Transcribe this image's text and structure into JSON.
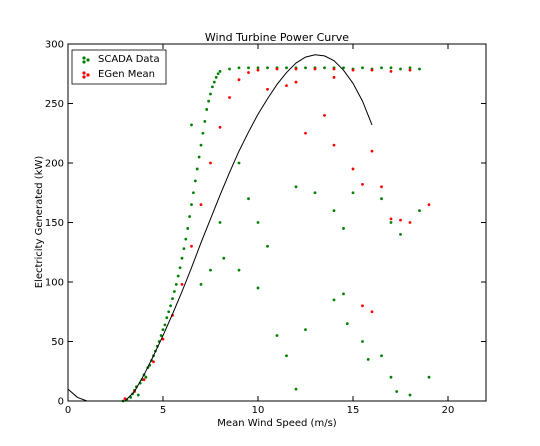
{
  "chart_data": {
    "type": "scatter",
    "title": "Wind Turbine Power Curve",
    "xlabel": "Mean Wind Speed (m/s)",
    "ylabel": "Electricity Generated (kW)",
    "xlim": [
      0,
      22
    ],
    "ylim": [
      0,
      300
    ],
    "x_ticks": [
      0,
      5,
      10,
      15,
      20
    ],
    "y_ticks": [
      0,
      50,
      100,
      150,
      200,
      250,
      300
    ],
    "grid": false,
    "legend_position": "top-left",
    "series": [
      {
        "name": "SCADA Data",
        "marker": "dot",
        "color": "#008000",
        "shape": "dense cloud of points following a sigmoid power curve from cut-in ~3 m/s, rising steeply between 4 and 8 m/s, saturating at ~280 kW from ~8.5 m/s to ~18.5 m/s, with sparse outliers below the curve",
        "points": [
          [
            2.9,
            0
          ],
          [
            3.1,
            1
          ],
          [
            3.3,
            3
          ],
          [
            3.4,
            6
          ],
          [
            3.5,
            9
          ],
          [
            3.6,
            12
          ],
          [
            3.7,
            5
          ],
          [
            3.8,
            15
          ],
          [
            3.9,
            18
          ],
          [
            4.0,
            22
          ],
          [
            4.1,
            20
          ],
          [
            4.2,
            28
          ],
          [
            4.3,
            30
          ],
          [
            4.4,
            34
          ],
          [
            4.5,
            38
          ],
          [
            4.6,
            42
          ],
          [
            4.7,
            46
          ],
          [
            4.8,
            50
          ],
          [
            4.9,
            55
          ],
          [
            5.0,
            60
          ],
          [
            5.1,
            64
          ],
          [
            5.2,
            70
          ],
          [
            5.3,
            75
          ],
          [
            5.4,
            80
          ],
          [
            5.5,
            86
          ],
          [
            5.6,
            92
          ],
          [
            5.7,
            98
          ],
          [
            5.8,
            105
          ],
          [
            5.9,
            112
          ],
          [
            6.0,
            120
          ],
          [
            6.1,
            128
          ],
          [
            6.2,
            136
          ],
          [
            6.3,
            145
          ],
          [
            6.4,
            155
          ],
          [
            6.5,
            165
          ],
          [
            6.6,
            175
          ],
          [
            6.7,
            185
          ],
          [
            6.8,
            195
          ],
          [
            6.9,
            205
          ],
          [
            7.0,
            215
          ],
          [
            7.1,
            225
          ],
          [
            7.2,
            235
          ],
          [
            7.3,
            245
          ],
          [
            7.4,
            252
          ],
          [
            7.5,
            258
          ],
          [
            7.6,
            264
          ],
          [
            7.7,
            268
          ],
          [
            7.8,
            272
          ],
          [
            7.9,
            275
          ],
          [
            8.0,
            277
          ],
          [
            8.5,
            279
          ],
          [
            9.0,
            280
          ],
          [
            9.5,
            280
          ],
          [
            10.0,
            280
          ],
          [
            10.5,
            280
          ],
          [
            11.0,
            280
          ],
          [
            11.5,
            280
          ],
          [
            12.0,
            280
          ],
          [
            12.5,
            280
          ],
          [
            13.0,
            280
          ],
          [
            13.5,
            280
          ],
          [
            14.0,
            280
          ],
          [
            14.5,
            280
          ],
          [
            15.0,
            279
          ],
          [
            15.5,
            280
          ],
          [
            16.0,
            279
          ],
          [
            16.5,
            280
          ],
          [
            17.0,
            280
          ],
          [
            17.5,
            279
          ],
          [
            18.0,
            280
          ],
          [
            18.5,
            279
          ],
          [
            6.5,
            232
          ],
          [
            7.0,
            98
          ],
          [
            7.5,
            110
          ],
          [
            8.0,
            150
          ],
          [
            8.2,
            120
          ],
          [
            9.0,
            200
          ],
          [
            9.5,
            170
          ],
          [
            10.0,
            150
          ],
          [
            10.5,
            130
          ],
          [
            12.0,
            180
          ],
          [
            13.0,
            175
          ],
          [
            14.0,
            160
          ],
          [
            14.5,
            145
          ],
          [
            15.0,
            175
          ],
          [
            16.5,
            170
          ],
          [
            17.0,
            150
          ],
          [
            17.5,
            140
          ],
          [
            18.5,
            160
          ],
          [
            14.0,
            85
          ],
          [
            14.5,
            90
          ],
          [
            14.7,
            65
          ],
          [
            15.5,
            50
          ],
          [
            15.8,
            35
          ],
          [
            16.5,
            38
          ],
          [
            17.0,
            20
          ],
          [
            17.3,
            8
          ],
          [
            18.0,
            5
          ],
          [
            12.0,
            10
          ],
          [
            19.0,
            20
          ],
          [
            11.0,
            55
          ],
          [
            11.5,
            38
          ],
          [
            12.5,
            60
          ],
          [
            10.0,
            95
          ],
          [
            9.0,
            110
          ]
        ]
      },
      {
        "name": "EGen Mean",
        "marker": "dot",
        "color": "#ff0000",
        "points": [
          [
            3.0,
            2
          ],
          [
            3.5,
            8
          ],
          [
            4.0,
            18
          ],
          [
            4.5,
            33
          ],
          [
            5.0,
            52
          ],
          [
            5.5,
            72
          ],
          [
            6.0,
            98
          ],
          [
            6.5,
            130
          ],
          [
            7.0,
            165
          ],
          [
            7.5,
            200
          ],
          [
            8.0,
            230
          ],
          [
            8.5,
            255
          ],
          [
            9.0,
            270
          ],
          [
            9.5,
            276
          ],
          [
            10.0,
            278
          ],
          [
            11.0,
            279
          ],
          [
            12.0,
            279
          ],
          [
            13.0,
            279
          ],
          [
            14.0,
            279
          ],
          [
            15.0,
            278
          ],
          [
            16.0,
            278
          ],
          [
            17.0,
            277
          ],
          [
            18.0,
            278
          ],
          [
            12.5,
            225
          ],
          [
            13.5,
            240
          ],
          [
            14.0,
            215
          ],
          [
            15.0,
            195
          ],
          [
            15.5,
            182
          ],
          [
            16.0,
            210
          ],
          [
            16.5,
            180
          ],
          [
            17.0,
            153
          ],
          [
            17.5,
            152
          ],
          [
            18.0,
            150
          ],
          [
            19.0,
            165
          ],
          [
            15.5,
            80
          ],
          [
            16.0,
            75
          ],
          [
            14.0,
            272
          ],
          [
            12.0,
            268
          ],
          [
            11.5,
            265
          ],
          [
            10.5,
            262
          ]
        ]
      },
      {
        "name": "",
        "type": "line",
        "color": "#000000",
        "x": [
          0,
          0.5,
          1.0,
          1.5,
          2.0,
          2.5,
          3.0,
          3.5,
          4.0,
          4.5,
          5.0,
          5.5,
          6.0,
          6.5,
          7.0,
          7.5,
          8.0,
          8.5,
          9.0,
          9.5,
          10.0,
          10.5,
          11.0,
          11.5,
          12.0,
          12.5,
          13.0,
          13.5,
          14.0,
          14.5,
          15.0,
          15.5,
          16.0
        ],
        "values": [
          10,
          3,
          0,
          0,
          0,
          0,
          0,
          8,
          22,
          38,
          55,
          73,
          92,
          112,
          133,
          153,
          173,
          192,
          210,
          226,
          241,
          254,
          266,
          276,
          284,
          289,
          291,
          290,
          286,
          278,
          267,
          252,
          232
        ]
      }
    ]
  }
}
